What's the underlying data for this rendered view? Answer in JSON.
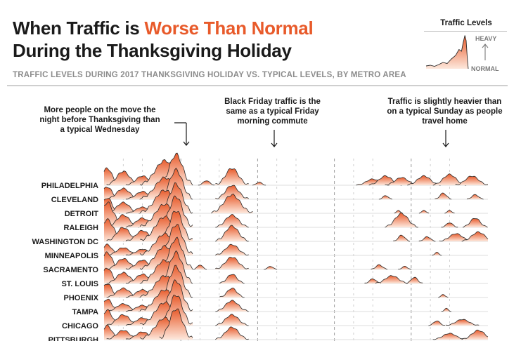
{
  "header": {
    "title_part1": "When Traffic is ",
    "title_highlight": "Worse Than Normal",
    "title_line2": "During the Thanksgiving Holiday",
    "subtitle": "TRAFFIC LEVELS DURING 2017 THANKSGIVING HOLIDAY VS. TYPICAL LEVELS, BY METRO AREA"
  },
  "legend": {
    "title": "Traffic Levels",
    "heavy_label": "HEAVY",
    "normal_label": "NORMAL"
  },
  "annotations": [
    "More people on the move the night before Thanksgiving than a typical Wednesday",
    "Black Friday traffic is the same as a typical Friday morning commute",
    "Traffic is slightly heavier than on a typical Sunday as people travel home"
  ],
  "colors": {
    "accent": "#e85a2a",
    "fill_light": "#fde8dc",
    "baseline": "#dddddd",
    "day_divider": "#9a9a9a"
  },
  "chart_data": {
    "type": "area",
    "x_unit": "hours from start of Wednesday",
    "x_range": [
      0,
      120
    ],
    "day_boundaries": [
      24,
      48,
      72,
      96
    ],
    "metros": [
      {
        "name": "PHILADELPHIA",
        "peaks": [
          [
            1,
            0.55,
            1.5
          ],
          [
            6,
            0.45,
            2
          ],
          [
            12,
            0.3,
            2
          ],
          [
            19,
            0.8,
            3
          ],
          [
            22.5,
            1.0,
            2
          ],
          [
            32,
            0.15,
            1
          ],
          [
            40,
            0.55,
            2
          ],
          [
            48.5,
            0.1,
            0.8
          ],
          [
            84,
            0.2,
            2
          ],
          [
            88,
            0.3,
            2
          ],
          [
            93,
            0.25,
            2
          ],
          [
            100,
            0.3,
            2
          ],
          [
            108,
            0.35,
            2
          ],
          [
            115,
            0.3,
            2
          ]
        ]
      },
      {
        "name": "CLEVELAND",
        "peaks": [
          [
            1,
            0.4,
            1.5
          ],
          [
            6,
            0.35,
            2
          ],
          [
            12,
            0.25,
            2
          ],
          [
            19,
            0.7,
            3
          ],
          [
            22.5,
            0.95,
            2
          ],
          [
            40,
            0.45,
            2
          ],
          [
            88,
            0.12,
            0.8
          ],
          [
            106,
            0.2,
            1
          ],
          [
            116,
            0.15,
            1
          ]
        ]
      },
      {
        "name": "DETROIT",
        "peaks": [
          [
            1,
            0.5,
            1.5
          ],
          [
            6,
            0.35,
            2
          ],
          [
            12,
            0.2,
            2
          ],
          [
            19,
            0.75,
            3
          ],
          [
            22.5,
            0.95,
            2
          ],
          [
            40,
            0.6,
            2.5
          ],
          [
            92,
            0.1,
            0.5
          ],
          [
            100,
            0.1,
            0.6
          ],
          [
            108,
            0.1,
            0.6
          ]
        ]
      },
      {
        "name": "RALEIGH",
        "peaks": [
          [
            1,
            0.8,
            2
          ],
          [
            6,
            0.4,
            2
          ],
          [
            12,
            0.3,
            2
          ],
          [
            19,
            0.75,
            3
          ],
          [
            22.5,
            1.0,
            2
          ],
          [
            40,
            0.4,
            2
          ],
          [
            93,
            0.45,
            2
          ],
          [
            108,
            0.15,
            1
          ],
          [
            116,
            0.3,
            1.5
          ]
        ]
      },
      {
        "name": "WASHINGTON DC",
        "peaks": [
          [
            1,
            0.7,
            2
          ],
          [
            6,
            0.45,
            2
          ],
          [
            12,
            0.35,
            2
          ],
          [
            19,
            0.8,
            3
          ],
          [
            22.5,
            1.0,
            2
          ],
          [
            40,
            0.5,
            2
          ],
          [
            93,
            0.2,
            1
          ],
          [
            101,
            0.15,
            1
          ],
          [
            110,
            0.25,
            2
          ],
          [
            117,
            0.3,
            2
          ]
        ]
      },
      {
        "name": "MINNEAPOLIS",
        "peaks": [
          [
            1,
            0.35,
            1.5
          ],
          [
            6,
            0.25,
            2
          ],
          [
            12,
            0.2,
            2
          ],
          [
            19,
            0.7,
            3
          ],
          [
            22.5,
            1.0,
            2
          ],
          [
            40,
            0.35,
            2
          ],
          [
            104,
            0.1,
            0.6
          ]
        ]
      },
      {
        "name": "SACRAMENTO",
        "peaks": [
          [
            1,
            0.55,
            1.5
          ],
          [
            6,
            0.35,
            2
          ],
          [
            12,
            0.3,
            2
          ],
          [
            19,
            0.75,
            3
          ],
          [
            22.5,
            1.0,
            2
          ],
          [
            30,
            0.15,
            0.8
          ],
          [
            40,
            0.4,
            2
          ],
          [
            52,
            0.1,
            0.8
          ],
          [
            86,
            0.15,
            1
          ],
          [
            94,
            0.1,
            0.8
          ]
        ]
      },
      {
        "name": "ST. LOUIS",
        "peaks": [
          [
            1,
            0.5,
            1.5
          ],
          [
            6,
            0.35,
            2
          ],
          [
            12,
            0.3,
            2
          ],
          [
            19,
            0.75,
            3
          ],
          [
            22.5,
            1.0,
            2
          ],
          [
            40,
            0.3,
            1.5
          ],
          [
            84,
            0.15,
            1
          ],
          [
            90,
            0.25,
            2
          ],
          [
            97,
            0.2,
            1
          ]
        ]
      },
      {
        "name": "PHOENIX",
        "peaks": [
          [
            1,
            0.45,
            1.5
          ],
          [
            6,
            0.3,
            2
          ],
          [
            12,
            0.25,
            2
          ],
          [
            19,
            0.7,
            3
          ],
          [
            22.5,
            1.0,
            2
          ],
          [
            40,
            0.3,
            1.5
          ],
          [
            106,
            0.1,
            0.6
          ]
        ]
      },
      {
        "name": "TAMPA",
        "peaks": [
          [
            1,
            0.4,
            1.5
          ],
          [
            6,
            0.25,
            2
          ],
          [
            12,
            0.2,
            2
          ],
          [
            19,
            0.7,
            3
          ],
          [
            22.5,
            1.0,
            2
          ],
          [
            40,
            0.35,
            2
          ],
          [
            107,
            0.1,
            0.6
          ]
        ]
      },
      {
        "name": "CHICAGO",
        "peaks": [
          [
            1,
            0.5,
            1.5
          ],
          [
            6,
            0.35,
            2
          ],
          [
            12,
            0.25,
            2
          ],
          [
            19,
            0.75,
            3
          ],
          [
            22.5,
            1.0,
            2
          ],
          [
            40,
            0.35,
            2
          ],
          [
            104,
            0.15,
            1
          ],
          [
            112,
            0.2,
            2
          ]
        ]
      },
      {
        "name": "PITTSBURGH",
        "peaks": [
          [
            1,
            0.45,
            1.5
          ],
          [
            6,
            0.3,
            2
          ],
          [
            12,
            0.25,
            2
          ],
          [
            19,
            0.7,
            3
          ],
          [
            22.5,
            1.0,
            2
          ],
          [
            40,
            0.4,
            2
          ],
          [
            108,
            0.2,
            2
          ],
          [
            117,
            0.3,
            2
          ]
        ]
      }
    ]
  }
}
